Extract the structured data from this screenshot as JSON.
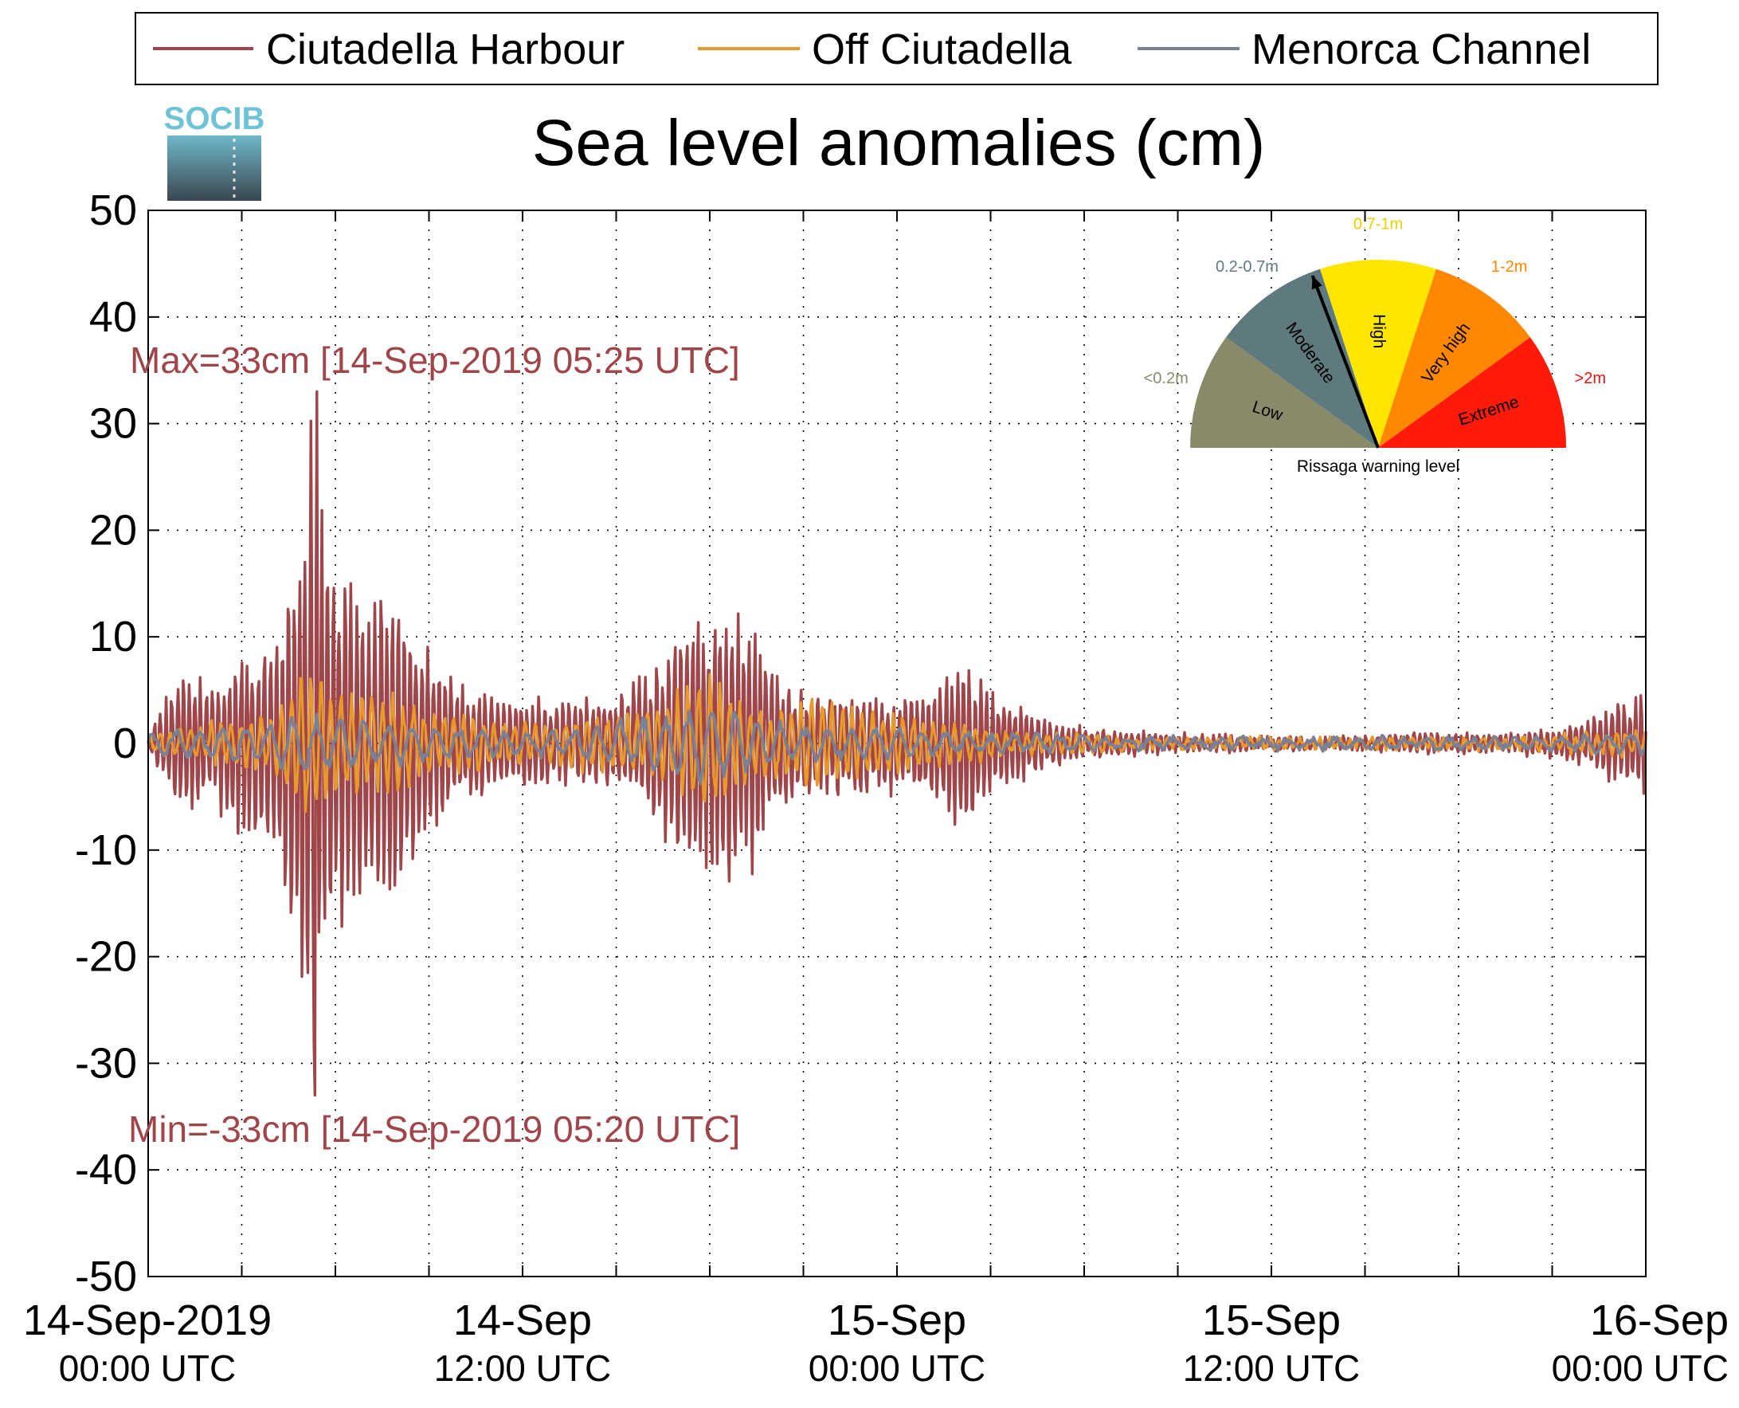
{
  "chart_data": {
    "type": "line",
    "title": "Sea level anomalies (cm)",
    "xlabel": "",
    "ylabel": "",
    "ylim": [
      -50,
      50
    ],
    "yticks": [
      50,
      40,
      30,
      20,
      10,
      0,
      -10,
      -20,
      -30,
      -40,
      -50
    ],
    "xlim_hours": [
      0,
      48
    ],
    "x_start": "14-Sep-2019 00:00 UTC",
    "x_minor_tick_interval_hours": 3,
    "xtick_labels": [
      {
        "hour": 0,
        "date": "14-Sep-2019",
        "time": "00:00 UTC"
      },
      {
        "hour": 12,
        "date": "14-Sep",
        "time": "12:00 UTC"
      },
      {
        "hour": 24,
        "date": "15-Sep",
        "time": "00:00 UTC"
      },
      {
        "hour": 36,
        "date": "15-Sep",
        "time": "12:00 UTC"
      },
      {
        "hour": 48,
        "date": "16-Sep",
        "time": "00:00 UTC"
      }
    ],
    "grid": true,
    "legend_placement": "top",
    "series": [
      {
        "name": "Ciutadella Harbour",
        "color": "#a0454a",
        "envelope": [
          [
            0,
            1
          ],
          [
            0.5,
            4
          ],
          [
            1,
            7
          ],
          [
            1.5,
            7
          ],
          [
            2,
            5
          ],
          [
            3,
            10
          ],
          [
            4,
            11
          ],
          [
            4.8,
            22
          ],
          [
            5.2,
            33
          ],
          [
            5.5,
            24
          ],
          [
            6,
            18
          ],
          [
            7,
            15
          ],
          [
            8,
            16
          ],
          [
            9,
            10
          ],
          [
            10,
            6
          ],
          [
            11,
            5
          ],
          [
            13,
            4
          ],
          [
            15,
            5
          ],
          [
            16,
            7
          ],
          [
            17,
            12
          ],
          [
            18,
            13
          ],
          [
            18.6,
            15
          ],
          [
            19,
            14
          ],
          [
            19.5,
            12
          ],
          [
            20,
            8
          ],
          [
            21,
            5
          ],
          [
            22,
            5
          ],
          [
            23,
            5
          ],
          [
            24.5,
            5
          ],
          [
            25.5,
            7
          ],
          [
            26,
            9
          ],
          [
            27,
            5
          ],
          [
            28,
            4
          ],
          [
            29,
            2
          ],
          [
            30,
            1.5
          ],
          [
            32,
            1
          ],
          [
            36,
            0.6
          ],
          [
            40,
            0.8
          ],
          [
            44,
            1
          ],
          [
            46,
            2
          ],
          [
            47,
            4
          ],
          [
            48,
            5
          ]
        ]
      },
      {
        "name": "Off Ciutadella",
        "color": "#e8992c",
        "envelope": [
          [
            0,
            1
          ],
          [
            2,
            2
          ],
          [
            4,
            3
          ],
          [
            4.8,
            7
          ],
          [
            5.2,
            8
          ],
          [
            6,
            5
          ],
          [
            8,
            5
          ],
          [
            9,
            3
          ],
          [
            10,
            3
          ],
          [
            12,
            2
          ],
          [
            15,
            3
          ],
          [
            16,
            3
          ],
          [
            18,
            7
          ],
          [
            19,
            4
          ],
          [
            20,
            3
          ],
          [
            21.5,
            5
          ],
          [
            22,
            4
          ],
          [
            24,
            3
          ],
          [
            26,
            2
          ],
          [
            28,
            1
          ],
          [
            30,
            1
          ],
          [
            32,
            0.5
          ],
          [
            40,
            0.5
          ],
          [
            44,
            0.6
          ],
          [
            46,
            1
          ],
          [
            48,
            1.5
          ]
        ]
      },
      {
        "name": "Menorca Channel",
        "color": "#7a8196",
        "envelope": [
          [
            0,
            1
          ],
          [
            2,
            1.5
          ],
          [
            4,
            2
          ],
          [
            5,
            3
          ],
          [
            6,
            2.5
          ],
          [
            8,
            2
          ],
          [
            10,
            1.5
          ],
          [
            12,
            1
          ],
          [
            15,
            2
          ],
          [
            16,
            3
          ],
          [
            18,
            4
          ],
          [
            19,
            3
          ],
          [
            20,
            2
          ],
          [
            22,
            1.5
          ],
          [
            24,
            1.5
          ],
          [
            26,
            1
          ],
          [
            28,
            1
          ],
          [
            30,
            0.8
          ],
          [
            32,
            0.5
          ],
          [
            40,
            0.5
          ],
          [
            44,
            0.5
          ],
          [
            46,
            0.7
          ],
          [
            48,
            1
          ]
        ]
      }
    ],
    "annotations": {
      "max": "Max=33cm [14-Sep-2019 05:25 UTC]",
      "min": "Min=-33cm [14-Sep-2019 05:20 UTC]"
    }
  },
  "logo_text": "SOCIB",
  "gauge": {
    "caption": "Rissaga warning level",
    "needle_level": "Moderate",
    "segments": [
      {
        "label": "Low",
        "range": "<0.2m",
        "color": "#888a6a",
        "range_color": "#888a6a"
      },
      {
        "label": "Moderate",
        "range": "0.2-0.7m",
        "color": "#5e7a7e",
        "range_color": "#5e7a7e"
      },
      {
        "label": "High",
        "range": "0.7-1m",
        "color": "#ffe600",
        "range_color": "#e8d000"
      },
      {
        "label": "Very high",
        "range": "1-2m",
        "color": "#ff8800",
        "range_color": "#ff8800"
      },
      {
        "label": "Extreme",
        "range": ">2m",
        "color": "#ff1a0a",
        "range_color": "#ee1111"
      }
    ]
  }
}
